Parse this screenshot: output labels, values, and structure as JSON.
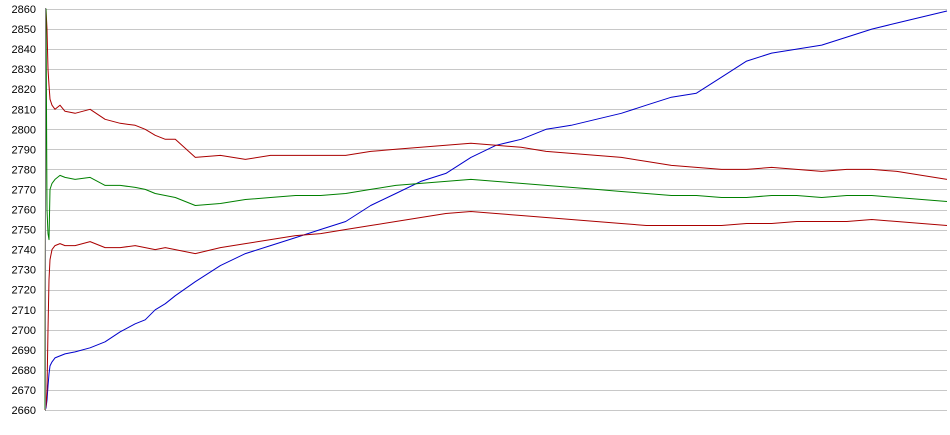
{
  "chart_data": {
    "type": "line",
    "title": "",
    "xlabel": "",
    "ylabel": "",
    "ylim": [
      2660,
      2860
    ],
    "yticks": [
      2660,
      2670,
      2680,
      2690,
      2700,
      2710,
      2720,
      2730,
      2740,
      2750,
      2760,
      2770,
      2780,
      2790,
      2800,
      2810,
      2820,
      2830,
      2840,
      2850,
      2860
    ],
    "x": [
      0,
      1,
      2,
      3,
      4,
      5,
      7,
      10,
      15,
      20,
      30,
      45,
      60,
      75,
      90,
      100,
      110,
      120,
      130,
      150,
      175,
      200,
      225,
      250,
      275,
      300,
      325,
      350,
      375,
      400,
      425,
      450,
      475,
      500,
      525,
      550,
      575,
      600,
      625,
      650,
      675,
      700,
      725,
      750,
      775,
      800,
      825,
      850,
      875,
      900
    ],
    "xlim": [
      0,
      900
    ],
    "grid": true,
    "legend": "none",
    "series": [
      {
        "color": "#0000cc",
        "values": [
          2660,
          2661,
          2665,
          2672,
          2678,
          2682,
          2684,
          2686,
          2687,
          2688,
          2689,
          2691,
          2694,
          2699,
          2703,
          2705,
          2710,
          2713,
          2717,
          2724,
          2732,
          2738,
          2742,
          2746,
          2750,
          2754,
          2762,
          2768,
          2774,
          2778,
          2786,
          2792,
          2795,
          2800,
          2802,
          2805,
          2808,
          2812,
          2816,
          2818,
          2826,
          2834,
          2838,
          2840,
          2842,
          2846,
          2850,
          2853,
          2856,
          2859
        ]
      },
      {
        "color": "#aa0000",
        "values": [
          2660,
          2860,
          2850,
          2830,
          2822,
          2815,
          2812,
          2810,
          2812,
          2809,
          2808,
          2810,
          2805,
          2803,
          2802,
          2800,
          2797,
          2795,
          2795,
          2786,
          2787,
          2785,
          2787,
          2787,
          2787,
          2787,
          2789,
          2790,
          2791,
          2792,
          2793,
          2792,
          2791,
          2789,
          2788,
          2787,
          2786,
          2784,
          2782,
          2781,
          2780,
          2780,
          2781,
          2780,
          2779,
          2780,
          2780,
          2779,
          2777,
          2775
        ]
      },
      {
        "color": "#008000",
        "values": [
          2660,
          2860,
          2760,
          2748,
          2745,
          2770,
          2773,
          2775,
          2777,
          2776,
          2775,
          2776,
          2772,
          2772,
          2771,
          2770,
          2768,
          2767,
          2766,
          2762,
          2763,
          2765,
          2766,
          2767,
          2767,
          2768,
          2770,
          2772,
          2773,
          2774,
          2775,
          2774,
          2773,
          2772,
          2771,
          2770,
          2769,
          2768,
          2767,
          2767,
          2766,
          2766,
          2767,
          2767,
          2766,
          2767,
          2767,
          2766,
          2765,
          2764
        ]
      },
      {
        "color": "#aa0000",
        "values": [
          2660,
          2662,
          2670,
          2700,
          2725,
          2735,
          2740,
          2742,
          2743,
          2742,
          2742,
          2744,
          2741,
          2741,
          2742,
          2741,
          2740,
          2741,
          2740,
          2738,
          2741,
          2743,
          2745,
          2747,
          2748,
          2750,
          2752,
          2754,
          2756,
          2758,
          2759,
          2758,
          2757,
          2756,
          2755,
          2754,
          2753,
          2752,
          2752,
          2752,
          2752,
          2753,
          2753,
          2754,
          2754,
          2754,
          2755,
          2754,
          2753,
          2752
        ]
      }
    ]
  }
}
